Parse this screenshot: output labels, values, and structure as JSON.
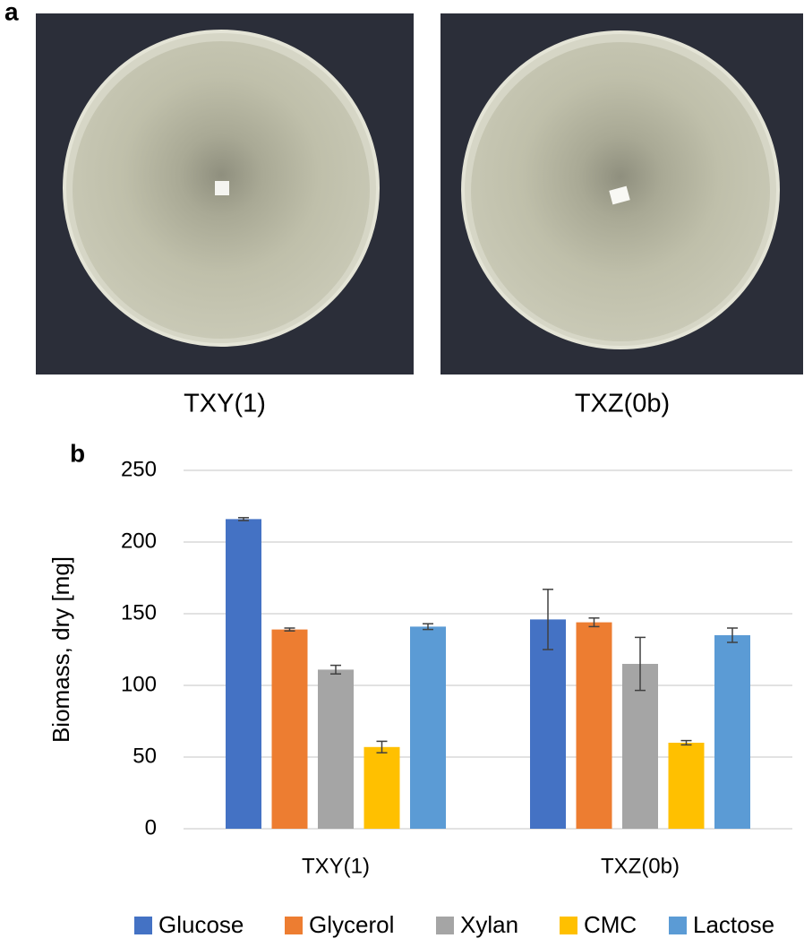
{
  "panel_a": {
    "label": "a",
    "captions": [
      "TXY(1)",
      "TXZ(0b)"
    ]
  },
  "chart_data": {
    "type": "bar",
    "panel_label": "b",
    "y_label": "Biomass, dry [mg]",
    "categories": [
      "TXY(1)",
      "TXZ(0b)"
    ],
    "series": [
      {
        "name": "Glucose",
        "color": "#4472c4",
        "values": [
          216,
          146
        ],
        "errors": [
          1,
          21
        ]
      },
      {
        "name": "Glycerol",
        "color": "#ed7d31",
        "values": [
          139,
          144
        ],
        "errors": [
          1,
          3
        ]
      },
      {
        "name": "Xylan",
        "color": "#a5a5a5",
        "values": [
          111,
          115
        ],
        "errors": [
          3,
          18.5
        ]
      },
      {
        "name": "CMC",
        "color": "#ffc000",
        "values": [
          57,
          60
        ],
        "errors": [
          4,
          1.5
        ]
      },
      {
        "name": "Lactose",
        "color": "#5b9bd5",
        "values": [
          141,
          135
        ],
        "errors": [
          2,
          5
        ]
      }
    ],
    "ylim": [
      0,
      250
    ],
    "yticks": [
      0,
      50,
      100,
      150,
      200,
      250
    ],
    "grid": true,
    "legend": "bottom"
  }
}
